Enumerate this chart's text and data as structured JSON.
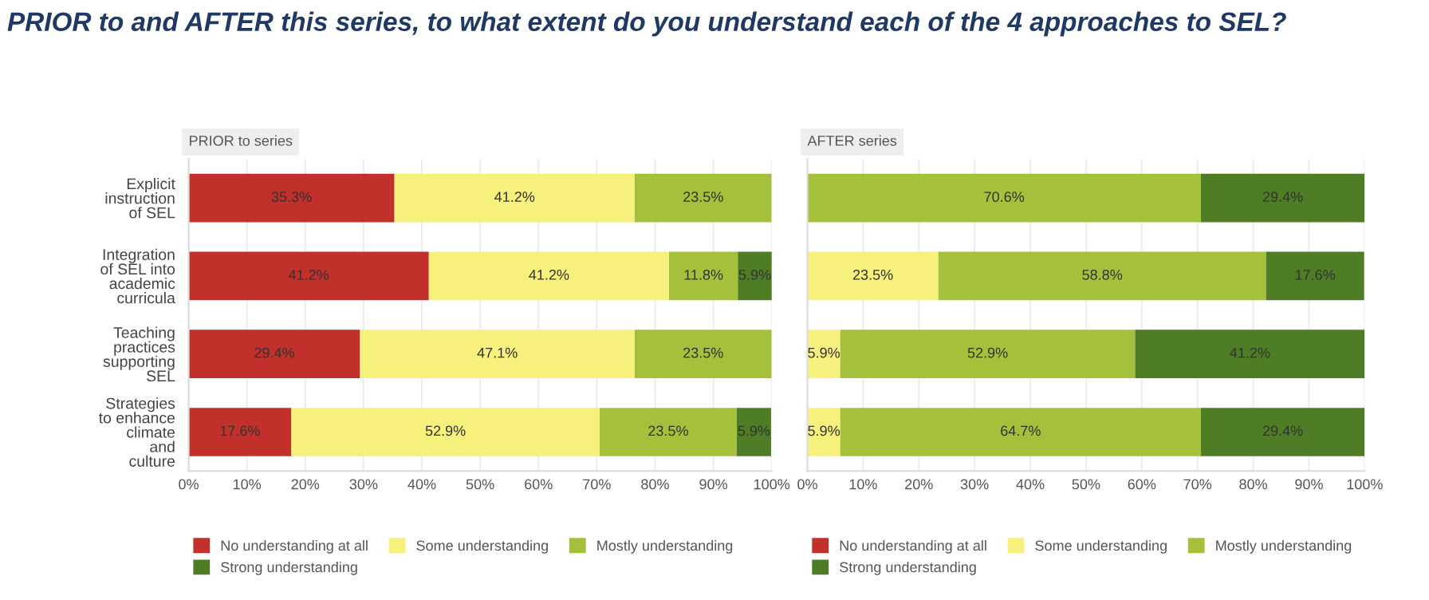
{
  "chart_data": [
    {
      "type": "bar",
      "orientation": "horizontal",
      "stacked": true,
      "title": "PRIOR to and AFTER this series, to what extent do you understand each of the 4 approaches to SEL?",
      "subtitle": "PRIOR to series",
      "categories": [
        "Explicit\ninstruction\nof SEL",
        "Integration\nof SEL into\nacademic\ncurricula",
        "Teaching\npractices\nsupporting\nSEL",
        "Strategies\nto enhance\nclimate\nand\nculture"
      ],
      "series": [
        {
          "name": "No understanding at all",
          "color": "#c1302b",
          "values": [
            35.3,
            41.2,
            29.4,
            17.6
          ],
          "value_labels": [
            "35.3%",
            "41.2%",
            "29.4%",
            "17.6%"
          ]
        },
        {
          "name": "Some understanding",
          "color": "#f6f07c",
          "values": [
            41.2,
            41.2,
            47.1,
            52.9
          ],
          "value_labels": [
            "41.2%",
            "41.2%",
            "47.1%",
            "52.9%"
          ]
        },
        {
          "name": "Mostly understanding",
          "color": "#a5c13b",
          "values": [
            23.5,
            11.8,
            23.5,
            23.5
          ],
          "value_labels": [
            "23.5%",
            "11.8%",
            "23.5%",
            "23.5%"
          ]
        },
        {
          "name": "Strong understanding",
          "color": "#4e7d25",
          "values": [
            null,
            5.9,
            null,
            5.9
          ],
          "value_labels": [
            null,
            "5.9%",
            null,
            "5.9%"
          ]
        }
      ],
      "xlim": [
        0,
        100
      ],
      "xticks": [
        {
          "value": 0,
          "label": "0%"
        },
        {
          "value": 10,
          "label": "10%"
        },
        {
          "value": 20,
          "label": "20%"
        },
        {
          "value": 30,
          "label": "30%"
        },
        {
          "value": 40,
          "label": "40%"
        },
        {
          "value": 50,
          "label": "50%"
        },
        {
          "value": 60,
          "label": "60%"
        },
        {
          "value": 70,
          "label": "70%"
        },
        {
          "value": 80,
          "label": "80%"
        },
        {
          "value": 90,
          "label": "90%"
        },
        {
          "value": 100,
          "label": "100%"
        }
      ],
      "grid": "x",
      "legend": "bottom"
    },
    {
      "type": "bar",
      "orientation": "horizontal",
      "stacked": true,
      "subtitle": "AFTER series",
      "categories": [
        null,
        null,
        null,
        null
      ],
      "series": [
        {
          "name": "No understanding at all",
          "color": "#c1302b",
          "values": [
            null,
            null,
            null,
            null
          ],
          "value_labels": [
            null,
            null,
            null,
            null
          ]
        },
        {
          "name": "Some understanding",
          "color": "#f6f07c",
          "values": [
            null,
            23.5,
            5.9,
            5.9
          ],
          "value_labels": [
            null,
            "23.5%",
            "5.9%",
            "5.9%"
          ]
        },
        {
          "name": "Mostly understanding",
          "color": "#a5c13b",
          "values": [
            70.6,
            58.8,
            52.9,
            64.7
          ],
          "value_labels": [
            "70.6%",
            "58.8%",
            "52.9%",
            "64.7%"
          ]
        },
        {
          "name": "Strong understanding",
          "color": "#4e7d25",
          "values": [
            29.4,
            17.6,
            41.2,
            29.4
          ],
          "value_labels": [
            "29.4%",
            "17.6%",
            "41.2%",
            "29.4%"
          ]
        }
      ],
      "xlim": [
        0,
        100
      ],
      "xticks": [
        {
          "value": 0,
          "label": "0%"
        },
        {
          "value": 10,
          "label": "10%"
        },
        {
          "value": 20,
          "label": "20%"
        },
        {
          "value": 30,
          "label": "30%"
        },
        {
          "value": 40,
          "label": "40%"
        },
        {
          "value": 50,
          "label": "50%"
        },
        {
          "value": 60,
          "label": "60%"
        },
        {
          "value": 70,
          "label": "70%"
        },
        {
          "value": 80,
          "label": "80%"
        },
        {
          "value": 90,
          "label": "90%"
        },
        {
          "value": 100,
          "label": "100%"
        }
      ],
      "tick_labels": "x",
      "grid": "x",
      "legend": "bottom"
    }
  ]
}
